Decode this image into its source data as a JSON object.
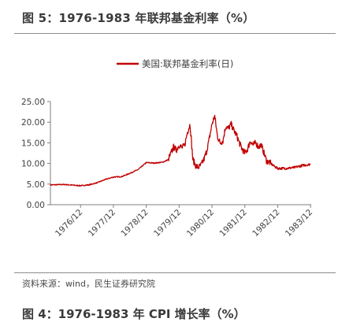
{
  "figure_title": "图 5：1976-1983 年联邦基金利率（%）",
  "source_note": "资料来源：wind，民生证券研究院",
  "next_figure_title": "图 4：1976-1983 年 CPI 增长率（%）",
  "colors": {
    "series": "#c00000",
    "axis": "#7f7f7f",
    "rule": "#8c8c8c"
  },
  "chart_data": {
    "type": "line",
    "title": "",
    "xlabel": "",
    "ylabel": "",
    "ylim": [
      0,
      25
    ],
    "yticks": [
      "0.00",
      "5.00",
      "10.00",
      "15.00",
      "20.00",
      "25.00"
    ],
    "xticks": [
      "1976/12",
      "1977/12",
      "1978/12",
      "1979/12",
      "1980/12",
      "1981/12",
      "1982/12",
      "1983/12"
    ],
    "grid": false,
    "legend": "top-center",
    "series": [
      {
        "name": "美国:联邦基金利率(日)",
        "x": [
          "1976/01",
          "1976/06",
          "1976/12",
          "1977/03",
          "1977/06",
          "1977/09",
          "1977/12",
          "1978/03",
          "1978/06",
          "1978/09",
          "1978/12",
          "1979/03",
          "1979/06",
          "1979/08",
          "1979/10",
          "1979/11",
          "1979/12",
          "1980/01",
          "1980/02",
          "1980/03",
          "1980/04",
          "1980/05",
          "1980/06",
          "1980/07",
          "1980/08",
          "1980/09",
          "1980/10",
          "1980/11",
          "1980/12",
          "1981/01",
          "1981/02",
          "1981/03",
          "1981/04",
          "1981/05",
          "1981/06",
          "1981/07",
          "1981/08",
          "1981/09",
          "1981/10",
          "1981/11",
          "1981/12",
          "1982/01",
          "1982/02",
          "1982/03",
          "1982/04",
          "1982/05",
          "1982/06",
          "1982/07",
          "1982/08",
          "1982/09",
          "1982/10",
          "1982/11",
          "1982/12",
          "1983/03",
          "1983/06",
          "1983/09",
          "1983/12"
        ],
        "values": [
          4.8,
          4.9,
          4.6,
          4.8,
          5.3,
          6.1,
          6.7,
          6.8,
          7.6,
          8.5,
          10.2,
          10.1,
          10.3,
          10.9,
          14.0,
          13.2,
          14.5,
          13.8,
          14.3,
          17.5,
          19.5,
          11.0,
          9.5,
          9.0,
          9.6,
          10.9,
          12.8,
          15.9,
          19.5,
          21.5,
          16.5,
          15.0,
          15.5,
          19.0,
          18.5,
          19.5,
          18.0,
          16.8,
          15.0,
          13.5,
          12.5,
          13.5,
          15.5,
          14.5,
          15.0,
          14.0,
          14.5,
          12.5,
          10.5,
          10.3,
          9.7,
          9.2,
          8.8,
          8.8,
          9.0,
          9.5,
          9.8
        ]
      }
    ]
  }
}
